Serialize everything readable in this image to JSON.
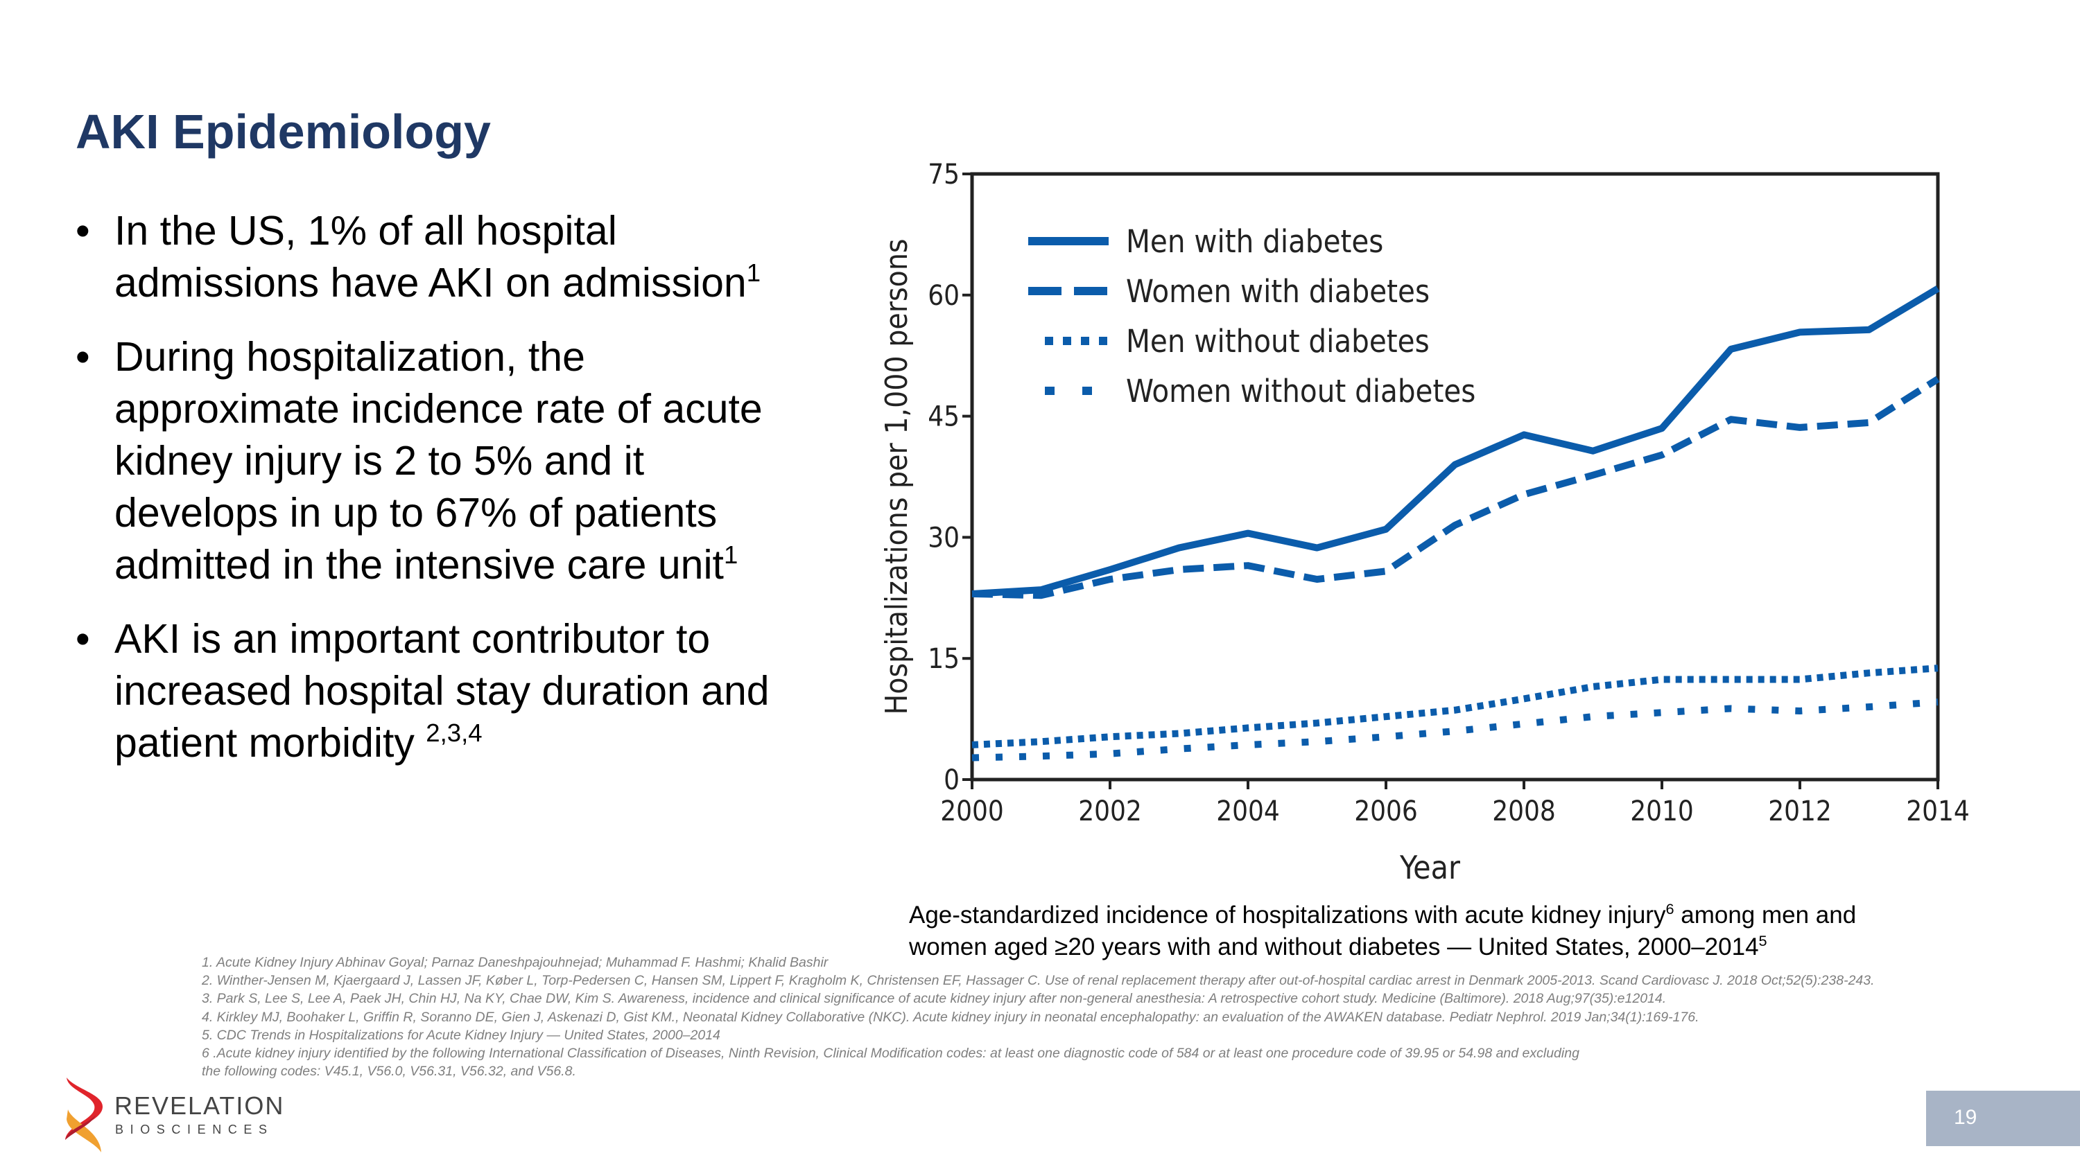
{
  "slide": {
    "title": "AKI Epidemiology",
    "page_number": "19",
    "bullets": [
      {
        "lines": [
          "In the US, 1% of all hospital",
          "admissions have AKI on admission"
        ],
        "sup": "1"
      },
      {
        "lines": [
          "During hospitalization, the",
          "approximate incidence rate of acute",
          "kidney injury is 2 to 5% and it",
          "develops in up to 67% of patients",
          "admitted in the intensive care unit"
        ],
        "sup": "1"
      },
      {
        "lines": [
          "AKI is an important contributor to",
          "increased hospital stay duration and",
          "patient morbidity "
        ],
        "sup": "2,3,4"
      }
    ],
    "bullet_symbol": "•",
    "caption": {
      "line1_a": "Age-standardized incidence of hospitalizations with acute kidney injury",
      "line1_sup": "6",
      "line1_b": " among men and",
      "line2": "women aged ≥20 years with and without diabetes — United States, 2000–2014",
      "line2_sup": "5"
    },
    "references": [
      "1. Acute Kidney Injury Abhinav Goyal; Parnaz Daneshpajouhnejad; Muhammad F. Hashmi; Khalid Bashir",
      "2. Winther-Jensen M, Kjaergaard J, Lassen JF, Køber L, Torp-Pedersen C, Hansen SM, Lippert F, Kragholm K, Christensen EF, Hassager C. Use of renal replacement therapy after out-of-hospital cardiac arrest in Denmark 2005-2013. Scand Cardiovasc J. 2018 Oct;52(5):238-243.",
      "3. Park S, Lee S, Lee A, Paek JH, Chin HJ, Na KY, Chae DW, Kim S. Awareness, incidence and clinical significance of acute kidney injury after non-general anesthesia: A retrospective cohort study. Medicine (Baltimore). 2018 Aug;97(35):e12014.",
      "4. Kirkley MJ, Boohaker L, Griffin R, Soranno DE, Gien J, Askenazi D, Gist KM., Neonatal Kidney Collaborative (NKC). Acute kidney injury in neonatal encephalopathy: an evaluation of the AWAKEN database. Pediatr Nephrol. 2019 Jan;34(1):169-176.",
      "5. CDC Trends in Hospitalizations for Acute Kidney Injury — United States, 2000–2014",
      "6 .Acute kidney injury identified by the following International Classification of Diseases, Ninth Revision, Clinical Modification codes: at least one diagnostic code of 584 or at least one procedure code of 39.95 or 54.98 and excluding",
      "the following codes: V45.1, V56.0, V56.31, V56.32, and V56.8."
    ],
    "logo": {
      "name": "REVELATION",
      "sub": "BIOSCIENCES",
      "colors": [
        "#e0242b",
        "#f0a030",
        "#b01c2e"
      ]
    }
  },
  "colors": {
    "title": "#1f3864",
    "series": "#0b5cab",
    "page_box": "#a8b4c6",
    "references": "#7f7f7f"
  },
  "chart_data": {
    "type": "line",
    "xlabel": "Year",
    "ylabel": "Hospitalizations per 1,000 persons",
    "xlim": [
      2000,
      2014
    ],
    "ylim": [
      0,
      75
    ],
    "xticks": [
      2000,
      2002,
      2004,
      2006,
      2008,
      2010,
      2012,
      2014
    ],
    "yticks": [
      0,
      15,
      30,
      45,
      60,
      75
    ],
    "grid": false,
    "legend_placement": "top-left",
    "x": [
      2000,
      2001,
      2002,
      2003,
      2004,
      2005,
      2006,
      2007,
      2008,
      2009,
      2010,
      2011,
      2012,
      2013,
      2014
    ],
    "series": [
      {
        "name": "Men with diabetes",
        "style": "solid",
        "values": [
          23,
          23.5,
          26,
          28.7,
          30.5,
          28.7,
          31,
          39,
          42.7,
          40.7,
          43.5,
          53.3,
          55.4,
          55.7,
          60.8
        ]
      },
      {
        "name": "Women with diabetes",
        "style": "dashed",
        "values": [
          23,
          22.8,
          24.8,
          26,
          26.5,
          24.8,
          25.8,
          31.5,
          35.3,
          37.7,
          40.2,
          44.6,
          43.6,
          44.2,
          49.6
        ]
      },
      {
        "name": "Men without diabetes",
        "style": "dotted",
        "values": [
          4.3,
          4.7,
          5.3,
          5.7,
          6.4,
          7,
          7.8,
          8.6,
          10,
          11.5,
          12.4,
          12.4,
          12.4,
          13.2,
          13.8
        ]
      },
      {
        "name": "Women without diabetes",
        "style": "sparse-dotted",
        "values": [
          2.7,
          2.9,
          3.2,
          3.8,
          4.3,
          4.7,
          5.3,
          6,
          6.9,
          7.8,
          8.3,
          8.8,
          8.5,
          9,
          9.6
        ]
      }
    ]
  }
}
